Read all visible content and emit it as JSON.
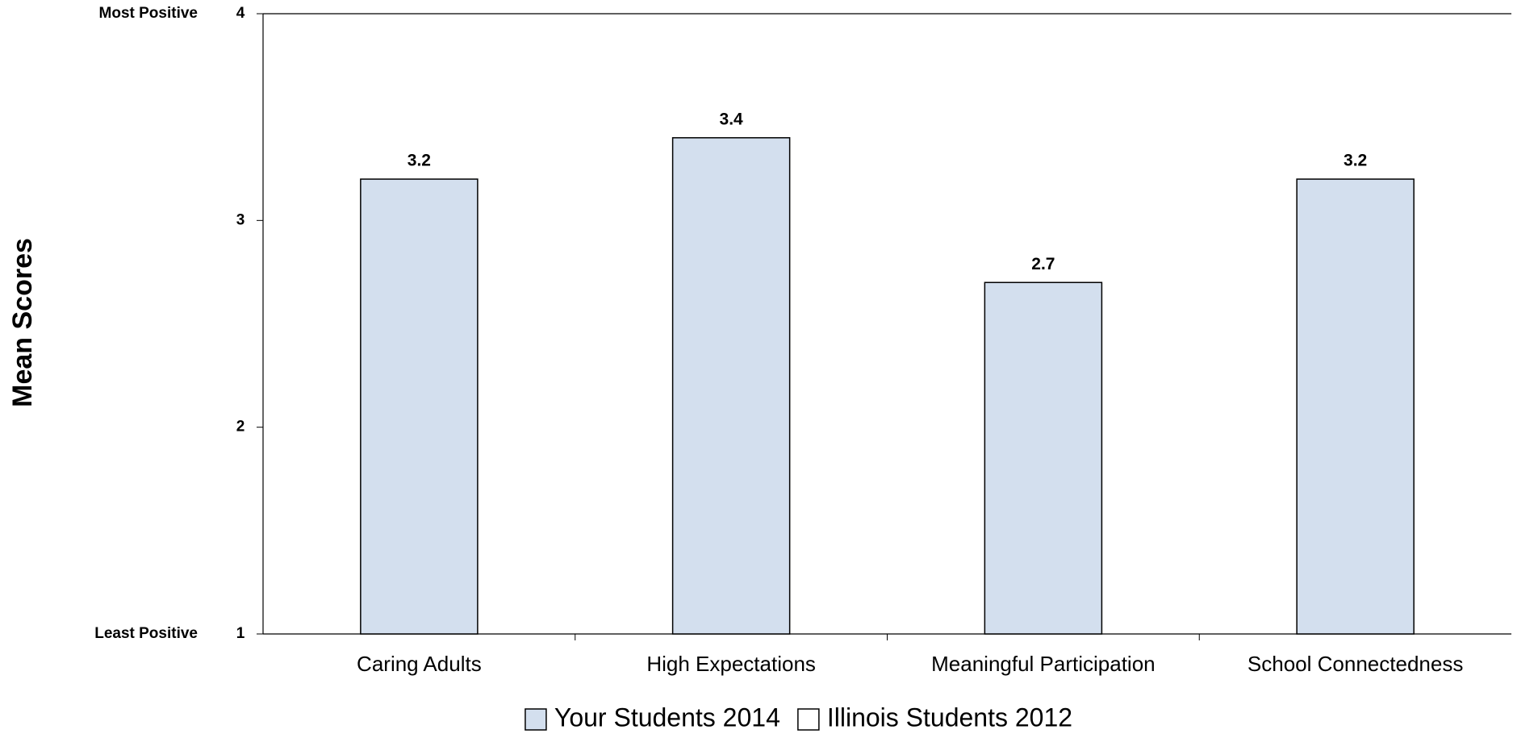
{
  "chart_data": {
    "type": "bar",
    "y_label": "Mean Scores",
    "annotations": [
      {
        "text": "Most Positive",
        "y": 4
      },
      {
        "text": "Least Positive",
        "y": 1
      }
    ],
    "categories": [
      "Caring Adults",
      "High Expectations",
      "Meaningful Participation",
      "School Connectedness"
    ],
    "series": [
      {
        "name": "Your Students 2014",
        "color": "#d3dfee",
        "values": [
          3.2,
          3.4,
          2.7,
          3.2
        ]
      },
      {
        "name": "Illinois Students 2012",
        "color": "#ffffff",
        "values": [
          null,
          null,
          null,
          null
        ]
      }
    ],
    "ylim": [
      1,
      4
    ],
    "yticks": [
      1,
      2,
      3,
      4
    ],
    "grid": false
  }
}
